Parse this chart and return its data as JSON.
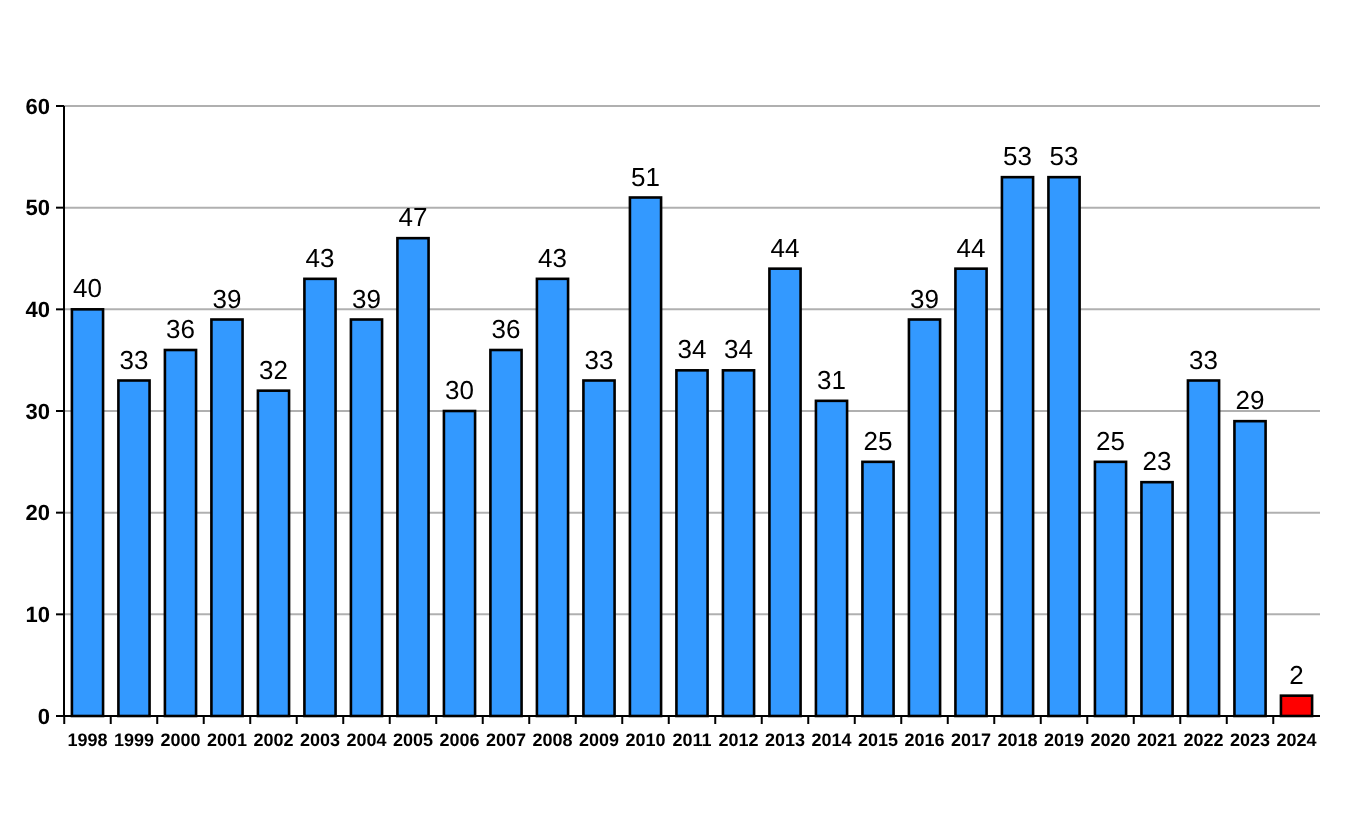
{
  "chart_data": {
    "type": "bar",
    "categories": [
      "1998",
      "1999",
      "2000",
      "2001",
      "2002",
      "2003",
      "2004",
      "2005",
      "2006",
      "2007",
      "2008",
      "2009",
      "2010",
      "2011",
      "2012",
      "2013",
      "2014",
      "2015",
      "2016",
      "2017",
      "2018",
      "2019",
      "2020",
      "2021",
      "2022",
      "2023",
      "2024"
    ],
    "values": [
      40,
      33,
      36,
      39,
      32,
      43,
      39,
      47,
      30,
      36,
      43,
      33,
      51,
      34,
      34,
      44,
      31,
      25,
      39,
      44,
      53,
      53,
      25,
      23,
      33,
      29,
      2
    ],
    "colors": [
      "#3399ff",
      "#3399ff",
      "#3399ff",
      "#3399ff",
      "#3399ff",
      "#3399ff",
      "#3399ff",
      "#3399ff",
      "#3399ff",
      "#3399ff",
      "#3399ff",
      "#3399ff",
      "#3399ff",
      "#3399ff",
      "#3399ff",
      "#3399ff",
      "#3399ff",
      "#3399ff",
      "#3399ff",
      "#3399ff",
      "#3399ff",
      "#3399ff",
      "#3399ff",
      "#3399ff",
      "#3399ff",
      "#3399ff",
      "#ff0000"
    ],
    "ylim": [
      0,
      60
    ],
    "yticks": [
      0,
      10,
      20,
      30,
      40,
      50,
      60
    ],
    "grid": "y",
    "data_labels": true
  }
}
